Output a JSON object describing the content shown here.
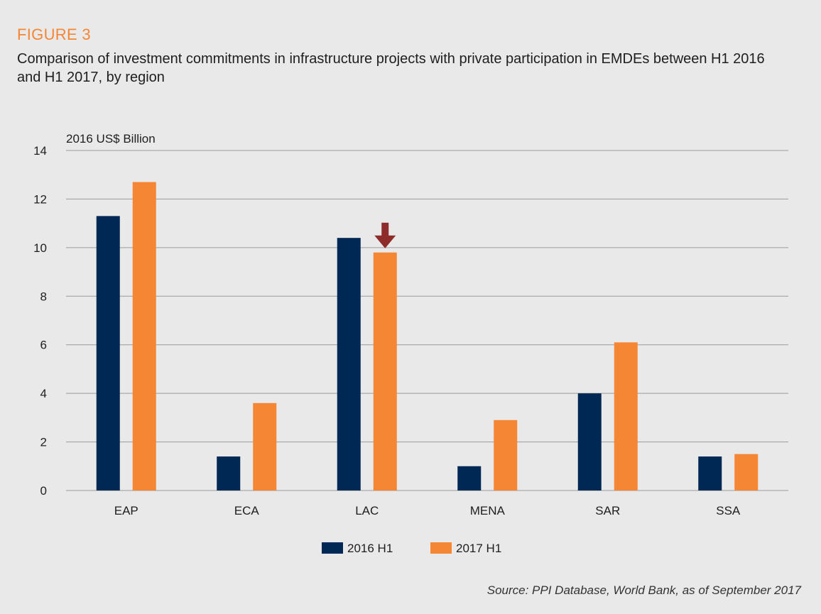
{
  "figure": {
    "label": "FIGURE 3",
    "title": "Comparison of investment commitments in infrastructure projects with private participation in EMDEs between H1 2016 and H1 2017, by region",
    "source": "Source: PPI Database, World Bank, as of September 2017"
  },
  "colors": {
    "series_2016": "#002855",
    "series_2017": "#f58634",
    "arrow": "#8e2b2b",
    "grid": "#9a9a9a",
    "background": "#e9e9ea"
  },
  "chart_data": {
    "type": "bar",
    "ylabel": "2016 US$ Billion",
    "ylim": [
      0,
      14
    ],
    "yticks": [
      0,
      2,
      4,
      6,
      8,
      10,
      12,
      14
    ],
    "categories": [
      "EAP",
      "ECA",
      "LAC",
      "MENA",
      "SAR",
      "SSA"
    ],
    "series": [
      {
        "name": "2016 H1",
        "values": [
          11.3,
          1.4,
          10.4,
          1.0,
          4.0,
          1.4
        ]
      },
      {
        "name": "2017 H1",
        "values": [
          12.7,
          3.6,
          9.8,
          2.9,
          6.1,
          1.5
        ]
      }
    ],
    "grid": true,
    "legend": "bottom-center",
    "annotation": {
      "type": "down-arrow",
      "category": "LAC",
      "series": "2017 H1"
    }
  }
}
